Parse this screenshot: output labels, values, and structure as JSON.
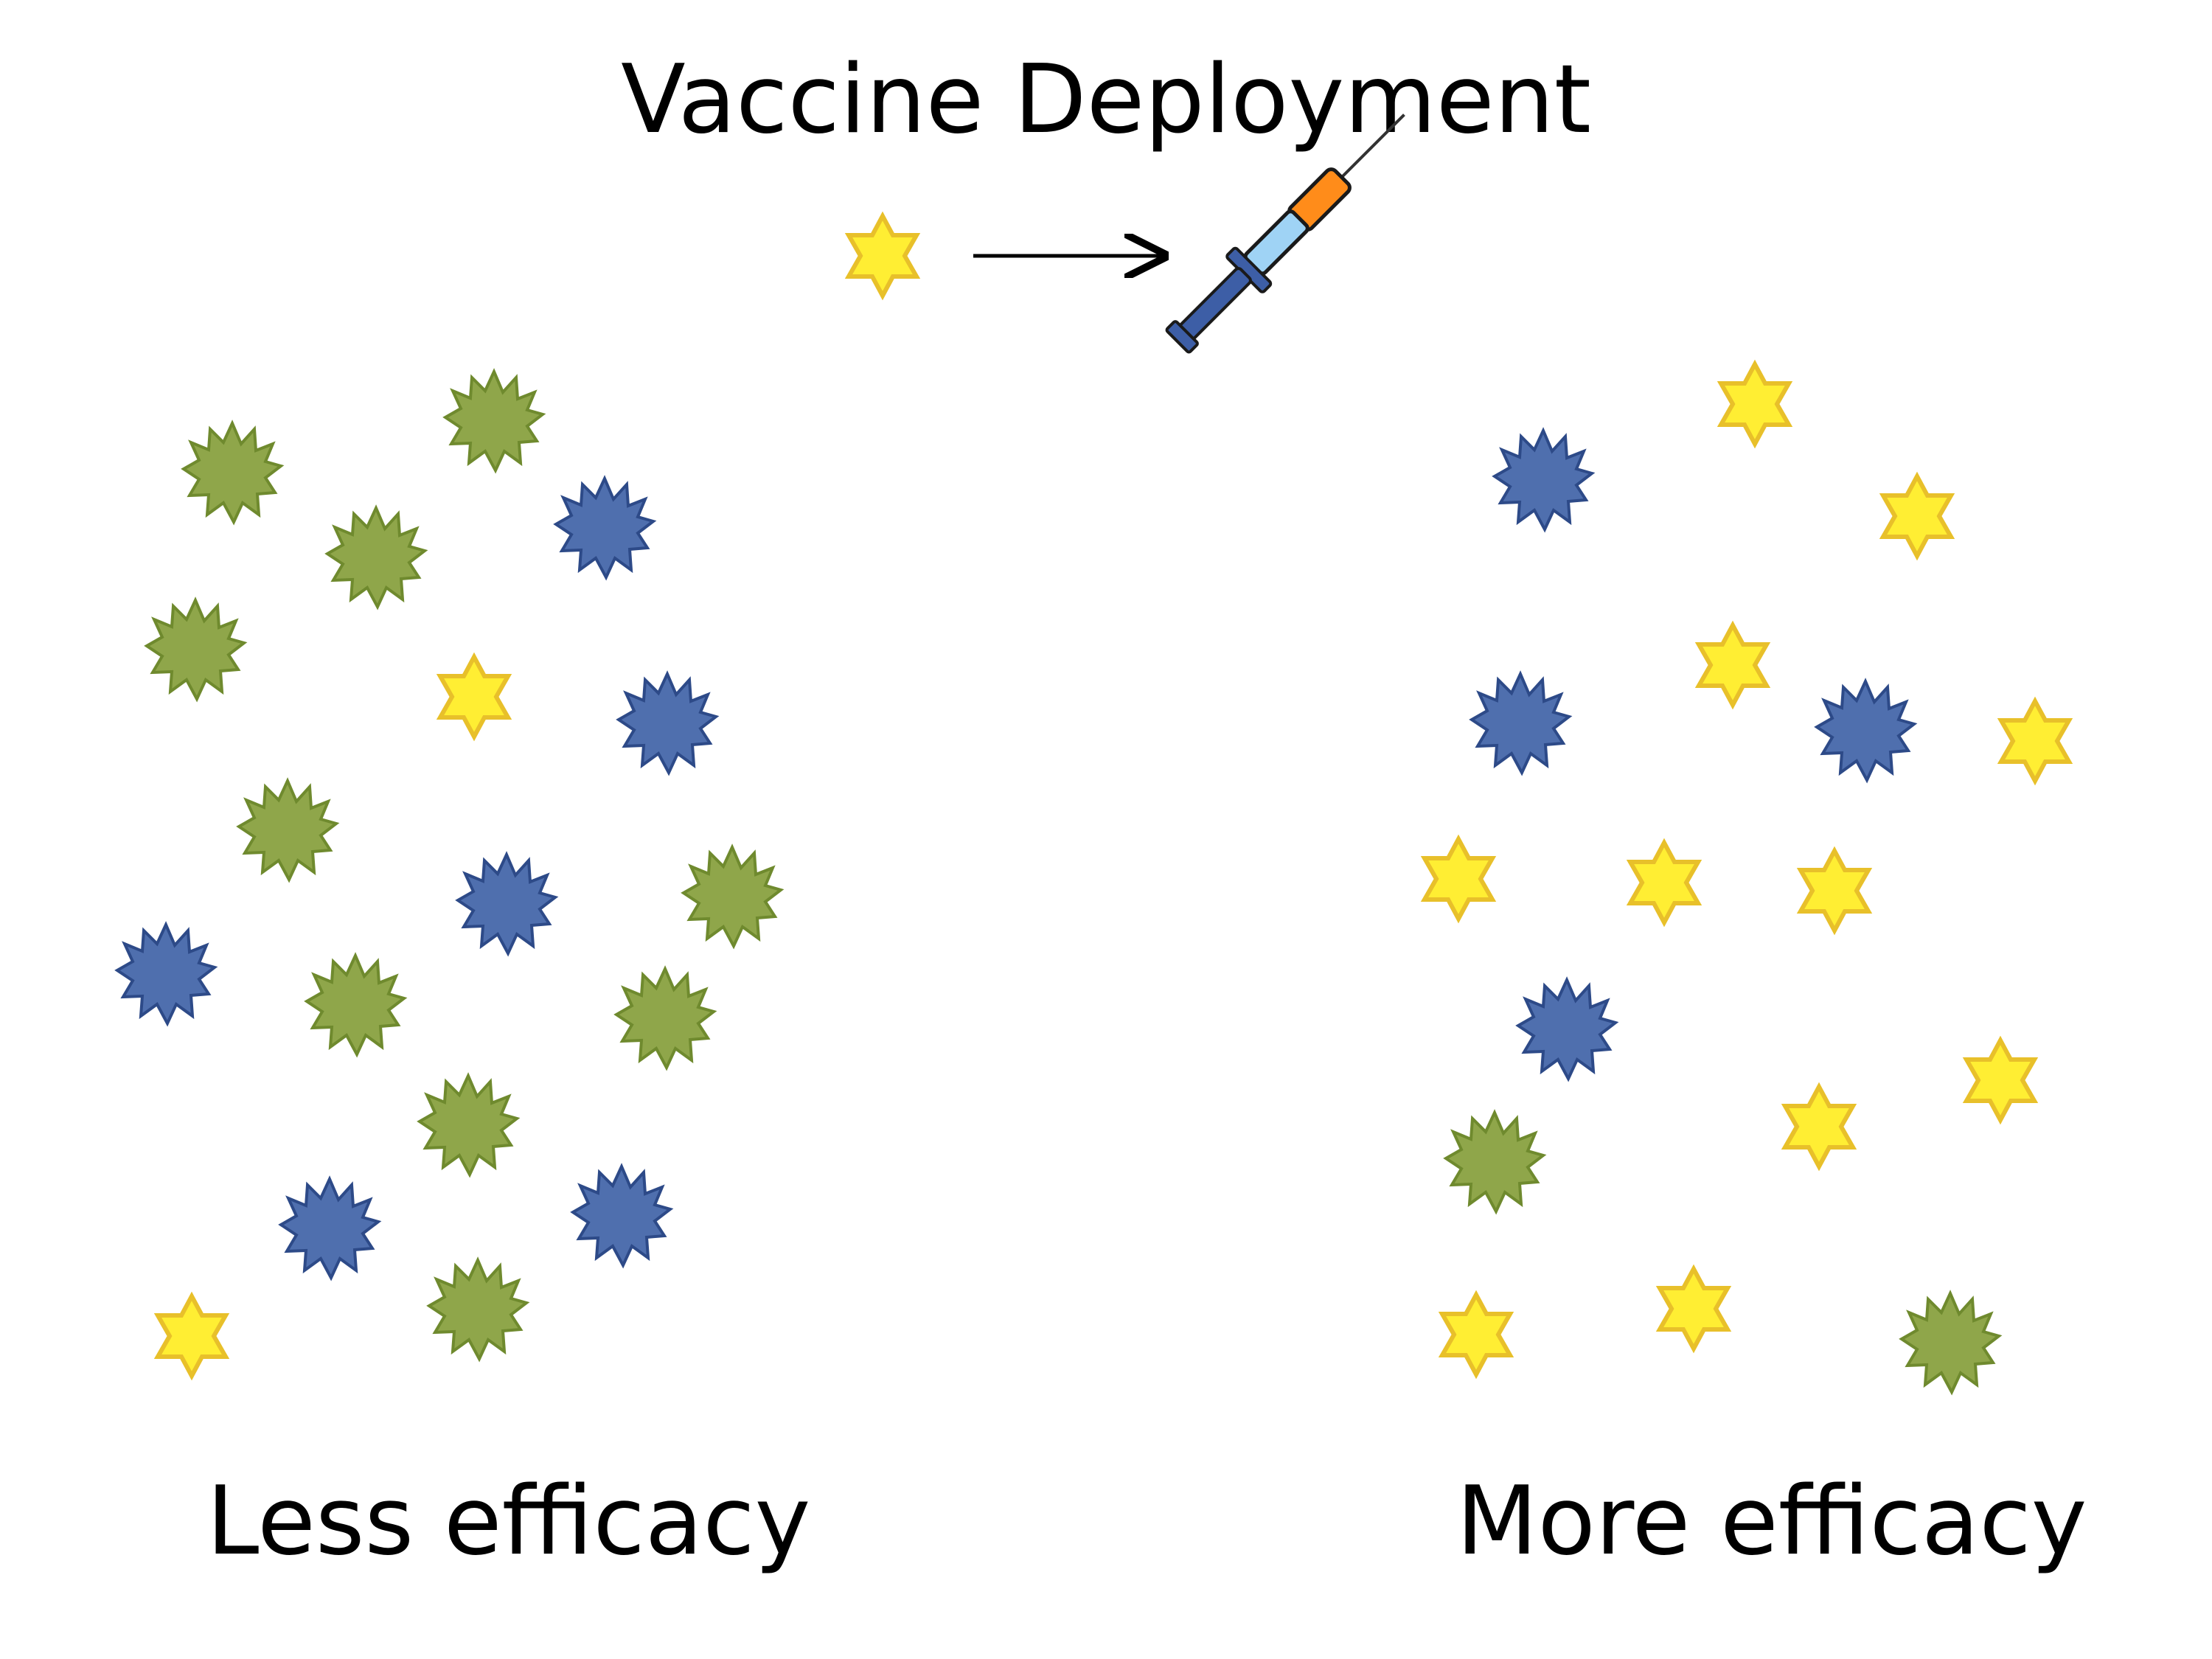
{
  "title": "Vaccine Deployment",
  "left_label": "Less efficacy",
  "right_label": "More efficacy",
  "colors": {
    "green_strain": "#8fa64a",
    "blue_strain": "#4f6fae",
    "yellow_strain": "#ffee33",
    "yellow_outline": "#e8c02a"
  },
  "icons": [
    "yellow-star-icon",
    "arrow-right-icon",
    "syringe-icon",
    "green-virus-icon",
    "blue-virus-icon"
  ]
}
